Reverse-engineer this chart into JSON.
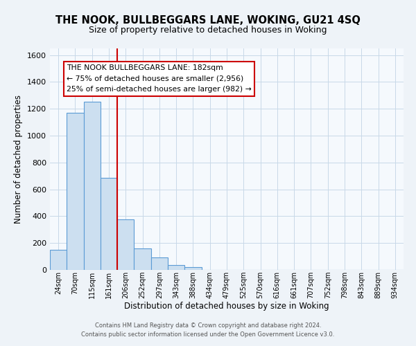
{
  "title": "THE NOOK, BULLBEGGARS LANE, WOKING, GU21 4SQ",
  "subtitle": "Size of property relative to detached houses in Woking",
  "xlabel": "Distribution of detached houses by size in Woking",
  "ylabel": "Number of detached properties",
  "bin_labels": [
    "24sqm",
    "70sqm",
    "115sqm",
    "161sqm",
    "206sqm",
    "252sqm",
    "297sqm",
    "343sqm",
    "388sqm",
    "434sqm",
    "479sqm",
    "525sqm",
    "570sqm",
    "616sqm",
    "661sqm",
    "707sqm",
    "752sqm",
    "798sqm",
    "843sqm",
    "889sqm",
    "934sqm"
  ],
  "bar_heights": [
    148,
    1170,
    1255,
    688,
    375,
    160,
    93,
    38,
    22,
    0,
    0,
    0,
    0,
    0,
    0,
    0,
    0,
    0,
    0,
    0,
    0
  ],
  "bar_color": "#ccdff0",
  "bar_edge_color": "#5b9bd5",
  "vline_x": 3.5,
  "vline_color": "#cc0000",
  "annotation_title": "THE NOOK BULLBEGGARS LANE: 182sqm",
  "annotation_line1": "← 75% of detached houses are smaller (2,956)",
  "annotation_line2": "25% of semi-detached houses are larger (982) →",
  "annotation_box_color": "#ffffff",
  "annotation_box_edge": "#cc0000",
  "ylim": [
    0,
    1650
  ],
  "yticks": [
    0,
    200,
    400,
    600,
    800,
    1000,
    1200,
    1400,
    1600
  ],
  "footer1": "Contains HM Land Registry data © Crown copyright and database right 2024.",
  "footer2": "Contains public sector information licensed under the Open Government Licence v3.0.",
  "bg_color": "#eef3f8",
  "plot_bg_color": "#f5f9fd",
  "grid_color": "#c8d8e8",
  "title_fontsize": 10.5,
  "subtitle_fontsize": 9,
  "ylabel_fontsize": 8.5,
  "xlabel_fontsize": 8.5
}
